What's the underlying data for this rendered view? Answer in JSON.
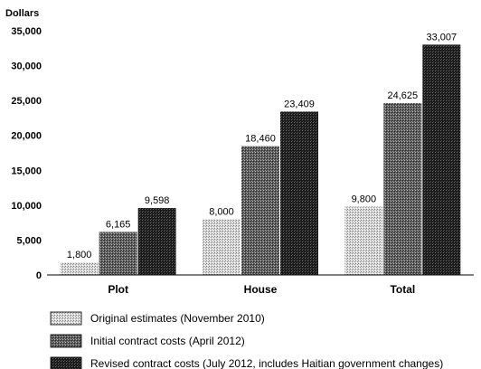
{
  "chart_data": {
    "type": "bar",
    "title": "",
    "xlabel": "",
    "ylabel": "Dollars",
    "ylim": [
      0,
      35000
    ],
    "y_ticks": [
      "0",
      "5,000",
      "10,000",
      "15,000",
      "20,000",
      "25,000",
      "30,000",
      "35,000"
    ],
    "grid": false,
    "legend_position": "bottom",
    "categories": [
      "Plot",
      "House",
      "Total"
    ],
    "series": [
      {
        "name": "Original estimates (November 2010)",
        "values": [
          1800,
          8000,
          9800
        ],
        "labels": [
          "1,800",
          "8,000",
          "9,800"
        ],
        "color": "#d2d2d2"
      },
      {
        "name": "Initial contract costs (April 2012)",
        "values": [
          6165,
          18460,
          24625
        ],
        "labels": [
          "6,165",
          "18,460",
          "24,625"
        ],
        "color": "#5a5a5a"
      },
      {
        "name": "Revised contract costs (July 2012, includes Haitian government changes)",
        "values": [
          9598,
          23409,
          33007
        ],
        "labels": [
          "9,598",
          "23,409",
          "33,007"
        ],
        "color": "#1c1c1c"
      }
    ]
  }
}
